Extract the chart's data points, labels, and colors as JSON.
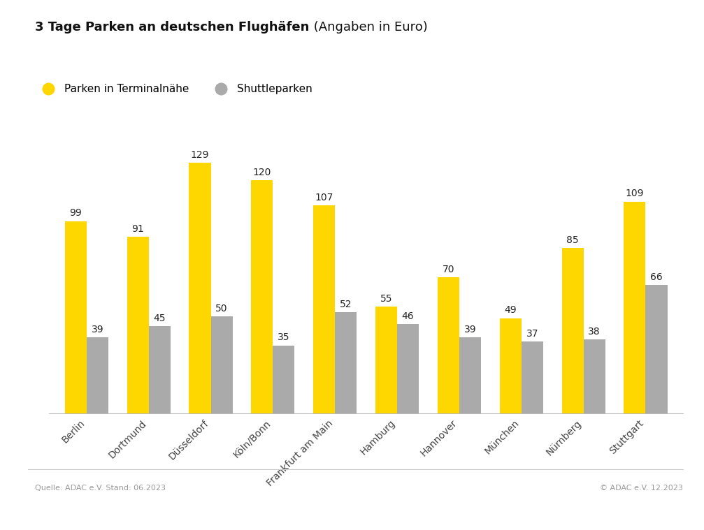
{
  "title_bold": "3 Tage Parken an deutschen Flughäfen",
  "title_normal": " (Angaben in Euro)",
  "categories": [
    "Berlin",
    "Dortmund",
    "Düsseldorf",
    "Köln/Bonn",
    "Frankfurt am Main",
    "Hamburg",
    "Hannover",
    "München",
    "Nürnberg",
    "Stuttgart"
  ],
  "terminal_values": [
    99,
    91,
    129,
    120,
    107,
    55,
    70,
    49,
    85,
    109
  ],
  "shuttle_values": [
    39,
    45,
    50,
    35,
    52,
    46,
    39,
    37,
    38,
    66
  ],
  "terminal_color": "#FFD700",
  "shuttle_color": "#AAAAAA",
  "legend_terminal": "Parken in Terminalnähe",
  "legend_shuttle": "Shuttleparken",
  "source_left": "Quelle: ADAC e.V. Stand: 06.2023",
  "source_right": "© ADAC e.V. 12.2023",
  "background_color": "#FFFFFF",
  "bar_width": 0.35,
  "ylim": [
    0,
    150
  ],
  "value_fontsize": 10,
  "label_fontsize": 10,
  "title_fontsize": 13,
  "legend_fontsize": 11
}
